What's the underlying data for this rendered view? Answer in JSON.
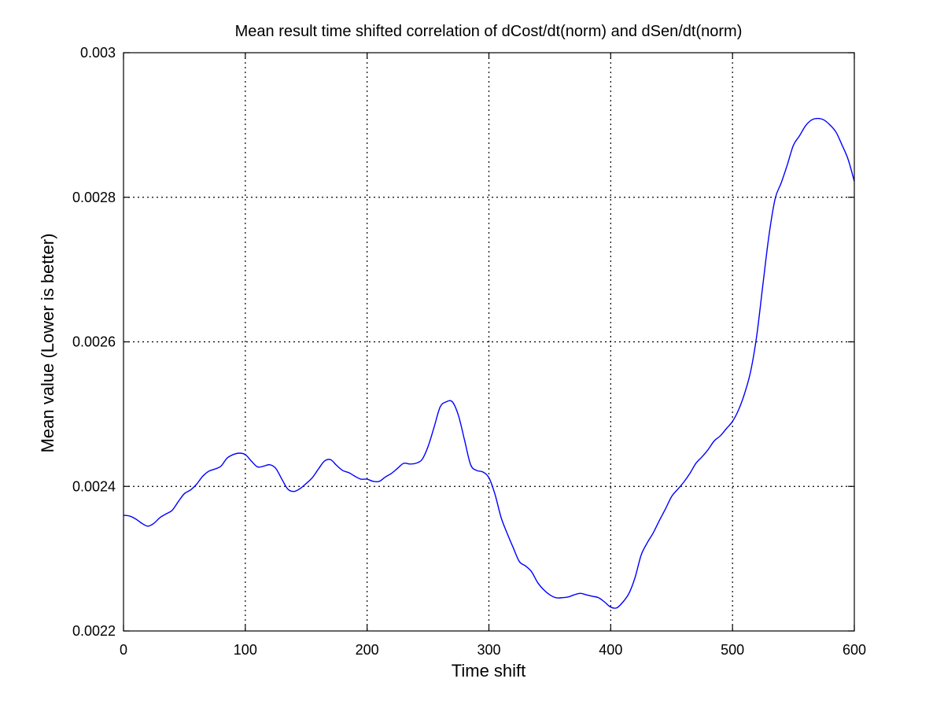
{
  "chart_data": {
    "type": "line",
    "title": "Mean result time shifted correlation of dCost/dt(norm) and dSen/dt(norm)",
    "xlabel": "Time shift",
    "ylabel": "Mean value (Lower is better)",
    "xlim": [
      0,
      600
    ],
    "ylim": [
      0.0022,
      0.003
    ],
    "xticks": [
      0,
      100,
      200,
      300,
      400,
      500,
      600
    ],
    "xtick_labels": [
      "0",
      "100",
      "200",
      "300",
      "400",
      "500",
      "600"
    ],
    "yticks": [
      0.0022,
      0.0024,
      0.0026,
      0.0028,
      0.003
    ],
    "ytick_labels": [
      "0.0022",
      "0.0024",
      "0.0026",
      "0.0028",
      "0.003"
    ],
    "grid": true,
    "line_color": "#0000ff",
    "series": [
      {
        "x": [
          0,
          5,
          10,
          15,
          20,
          25,
          30,
          35,
          40,
          45,
          50,
          55,
          60,
          65,
          70,
          75,
          80,
          85,
          90,
          95,
          100,
          105,
          110,
          115,
          120,
          125,
          130,
          135,
          140,
          145,
          150,
          155,
          160,
          165,
          170,
          175,
          180,
          185,
          190,
          195,
          200,
          205,
          210,
          215,
          220,
          225,
          230,
          235,
          240,
          245,
          250,
          255,
          260,
          265,
          270,
          275,
          280,
          285,
          290,
          295,
          300,
          305,
          310,
          315,
          320,
          325,
          330,
          335,
          340,
          345,
          350,
          355,
          360,
          365,
          370,
          375,
          380,
          385,
          390,
          395,
          400,
          405,
          410,
          415,
          420,
          425,
          430,
          435,
          440,
          445,
          450,
          455,
          460,
          465,
          470,
          475,
          480,
          485,
          490,
          495,
          500,
          505,
          510,
          515,
          520,
          525,
          530,
          535,
          540,
          545,
          550,
          555,
          560,
          565,
          570,
          575,
          580,
          585,
          590,
          595,
          600
        ],
        "y": [
          0.00236,
          0.002359,
          0.002355,
          0.002349,
          0.002345,
          0.002349,
          0.002357,
          0.002362,
          0.002367,
          0.002379,
          0.00239,
          0.002395,
          0.002403,
          0.002414,
          0.002421,
          0.002424,
          0.002428,
          0.002439,
          0.002444,
          0.002446,
          0.002444,
          0.002435,
          0.002427,
          0.002428,
          0.00243,
          0.002425,
          0.00241,
          0.002396,
          0.002393,
          0.002397,
          0.002404,
          0.002412,
          0.002424,
          0.002435,
          0.002437,
          0.002429,
          0.002422,
          0.002419,
          0.002414,
          0.00241,
          0.00241,
          0.002407,
          0.002407,
          0.002413,
          0.002418,
          0.002425,
          0.002432,
          0.002431,
          0.002432,
          0.002437,
          0.002455,
          0.002482,
          0.00251,
          0.002517,
          0.002517,
          0.002498,
          0.002464,
          0.00243,
          0.002422,
          0.00242,
          0.002412,
          0.002389,
          0.002357,
          0.002335,
          0.002315,
          0.002296,
          0.00229,
          0.002282,
          0.002267,
          0.002257,
          0.00225,
          0.002246,
          0.002246,
          0.002247,
          0.00225,
          0.002252,
          0.00225,
          0.002248,
          0.002246,
          0.00224,
          0.002233,
          0.002232,
          0.00224,
          0.002252,
          0.002274,
          0.002305,
          0.002322,
          0.002336,
          0.002353,
          0.002369,
          0.002386,
          0.002396,
          0.002406,
          0.002418,
          0.002432,
          0.002441,
          0.002451,
          0.002463,
          0.00247,
          0.00248,
          0.00249,
          0.002506,
          0.002529,
          0.00256,
          0.00261,
          0.00268,
          0.002748,
          0.002798,
          0.00282,
          0.002845,
          0.002872,
          0.002885,
          0.002899,
          0.002907,
          0.002909,
          0.002907,
          0.0029,
          0.00289,
          0.002872,
          0.002852,
          0.002822
        ]
      }
    ]
  }
}
